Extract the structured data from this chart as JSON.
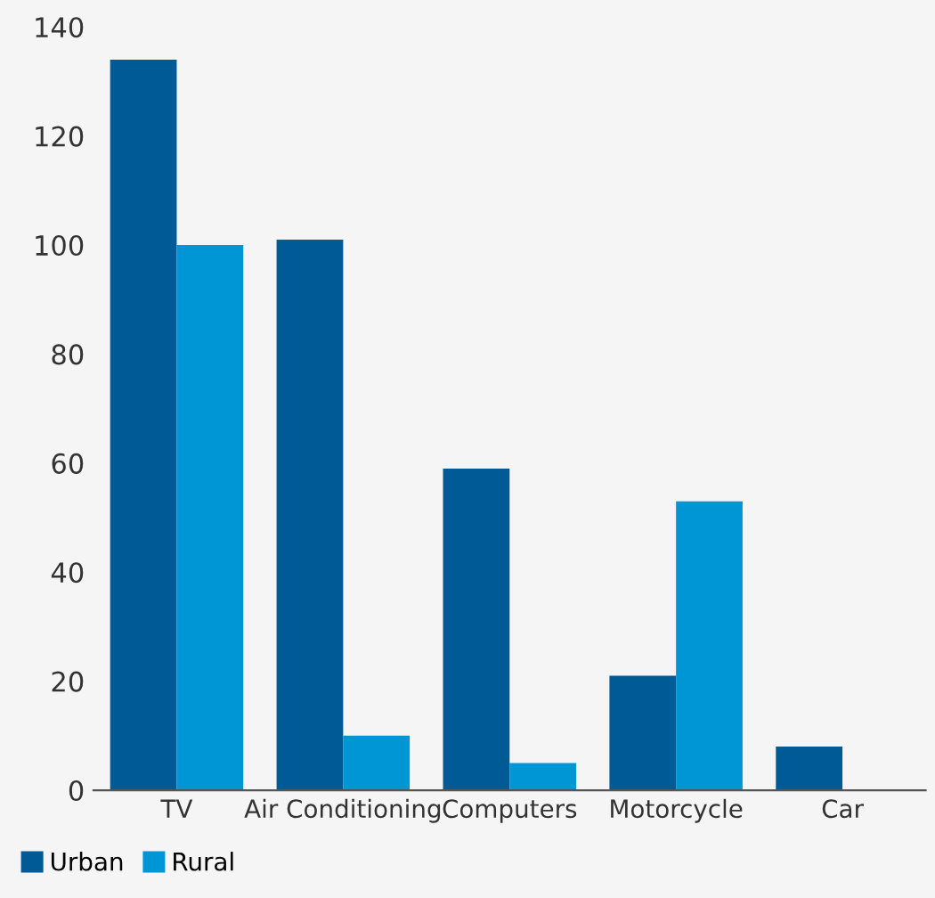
{
  "chart_data": {
    "type": "bar",
    "categories": [
      "TV",
      "Air Conditioning",
      "Computers",
      "Motorcycle",
      "Car"
    ],
    "series": [
      {
        "name": "Urban",
        "color": "#005a96",
        "values": [
          134,
          101,
          59,
          21,
          8
        ]
      },
      {
        "name": "Rural",
        "color": "#0096d6",
        "values": [
          100,
          10,
          5,
          53,
          null
        ]
      }
    ],
    "ylim": [
      0,
      140
    ],
    "yticks": [
      0,
      20,
      40,
      60,
      80,
      100,
      120,
      140
    ],
    "grid": false,
    "legend": "bottom left"
  }
}
